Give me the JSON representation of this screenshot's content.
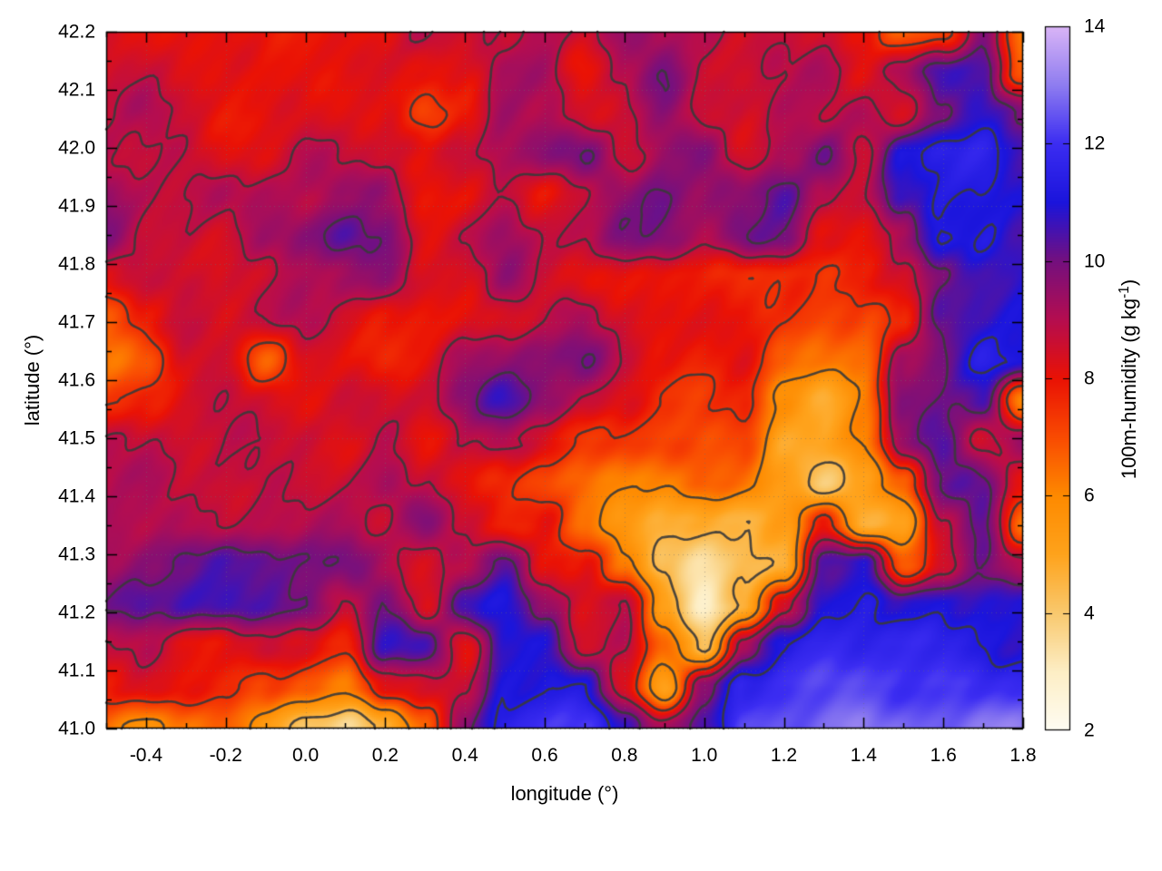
{
  "chart_data": {
    "type": "heatmap",
    "title": "",
    "xlabel": "longitude (°)",
    "ylabel": "latitude (°)",
    "colorbar_label": "100m-humidity (g kg⁻¹)",
    "colorbar_label_parts": {
      "main": "100m-humidity (g kg",
      "sup": "-1",
      "close": ")"
    },
    "xlim": [
      -0.5,
      1.8
    ],
    "ylim": [
      41.0,
      42.2
    ],
    "grid_on": true,
    "legend_position": "none",
    "x_ticks": [
      {
        "v": -0.4,
        "label": "-0.4"
      },
      {
        "v": -0.2,
        "label": "-0.2"
      },
      {
        "v": 0.0,
        "label": "0.0"
      },
      {
        "v": 0.2,
        "label": "0.2"
      },
      {
        "v": 0.4,
        "label": "0.4"
      },
      {
        "v": 0.6,
        "label": "0.6"
      },
      {
        "v": 0.8,
        "label": "0.8"
      },
      {
        "v": 1.0,
        "label": "1.0"
      },
      {
        "v": 1.2,
        "label": "1.2"
      },
      {
        "v": 1.4,
        "label": "1.4"
      },
      {
        "v": 1.6,
        "label": "1.6"
      },
      {
        "v": 1.8,
        "label": "1.8"
      }
    ],
    "x_minor_ticks": [
      -0.5,
      -0.3,
      -0.1,
      0.1,
      0.3,
      0.5,
      0.7,
      0.9,
      1.1,
      1.3,
      1.5,
      1.7
    ],
    "y_ticks": [
      {
        "v": 41.0,
        "label": "41.0"
      },
      {
        "v": 41.1,
        "label": "41.1"
      },
      {
        "v": 41.2,
        "label": "41.2"
      },
      {
        "v": 41.3,
        "label": "41.3"
      },
      {
        "v": 41.4,
        "label": "41.4"
      },
      {
        "v": 41.5,
        "label": "41.5"
      },
      {
        "v": 41.6,
        "label": "41.6"
      },
      {
        "v": 41.7,
        "label": "41.7"
      },
      {
        "v": 41.8,
        "label": "41.8"
      },
      {
        "v": 41.9,
        "label": "41.9"
      },
      {
        "v": 42.0,
        "label": "42.0"
      },
      {
        "v": 42.1,
        "label": "42.1"
      },
      {
        "v": 42.2,
        "label": "42.2"
      }
    ],
    "y_minor_ticks": [
      41.05,
      41.15,
      41.25,
      41.35,
      41.45,
      41.55,
      41.65,
      41.75,
      41.85,
      41.95,
      42.05,
      42.15
    ],
    "colorbar": {
      "min": 2,
      "max": 14,
      "ticks": [
        {
          "v": 2,
          "label": "2"
        },
        {
          "v": 4,
          "label": "4"
        },
        {
          "v": 6,
          "label": "6"
        },
        {
          "v": 8,
          "label": "8"
        },
        {
          "v": 10,
          "label": "10"
        },
        {
          "v": 12,
          "label": "12"
        },
        {
          "v": 14,
          "label": "14"
        }
      ],
      "palette": [
        {
          "v": 2,
          "c": "#fffdf3"
        },
        {
          "v": 3,
          "c": "#fdeec5"
        },
        {
          "v": 4,
          "c": "#f9c96e"
        },
        {
          "v": 5,
          "c": "#ffa31c"
        },
        {
          "v": 6,
          "c": "#fe8a00"
        },
        {
          "v": 7,
          "c": "#f94b02"
        },
        {
          "v": 8,
          "c": "#ea1205"
        },
        {
          "v": 9,
          "c": "#b50d50"
        },
        {
          "v": 10,
          "c": "#75107f"
        },
        {
          "v": 11,
          "c": "#1b15dc"
        },
        {
          "v": 12,
          "c": "#3c2df2"
        },
        {
          "v": 13,
          "c": "#8f7df0"
        },
        {
          "v": 14,
          "c": "#dab5f7"
        }
      ]
    },
    "contour_levels": [
      4.5,
      6.0,
      7.5,
      8.8,
      10.0,
      11.2
    ],
    "contour_color": "#3a3a3a",
    "grid_values": {
      "note": "100m-humidity (g/kg), coarse grid read from map colors; rows top-to-bottom lat 42.2->41.0, cols left-to-right lon -0.5->1.8",
      "rows": 18,
      "cols": 24,
      "lat_top": 42.2,
      "lat_bottom": 41.0,
      "lon_left": -0.5,
      "lon_right": 1.8,
      "values": [
        [
          8.2,
          8.2,
          8.0,
          8.0,
          8.0,
          8.2,
          8.0,
          7.8,
          8.8,
          8.2,
          8.5,
          9.3,
          9.0,
          9.5,
          9.3,
          9.0,
          8.3,
          8.5,
          8.8,
          8.0,
          6.5,
          7.0,
          9.5,
          6.0
        ],
        [
          8.3,
          8.3,
          8.2,
          8.0,
          8.0,
          8.2,
          8.3,
          8.0,
          8.0,
          8.3,
          9.3,
          9.5,
          8.3,
          9.0,
          9.6,
          8.5,
          8.3,
          8.8,
          9.3,
          8.5,
          9.0,
          10.5,
          10.5,
          7.0
        ],
        [
          8.5,
          8.8,
          8.5,
          8.3,
          8.3,
          8.5,
          8.3,
          8.2,
          6.8,
          8.0,
          9.5,
          9.0,
          8.3,
          8.5,
          9.3,
          8.3,
          8.8,
          9.3,
          9.0,
          9.3,
          8.5,
          9.5,
          10.8,
          10.0
        ],
        [
          9.0,
          8.8,
          8.8,
          8.5,
          8.5,
          8.8,
          8.5,
          8.3,
          8.0,
          8.5,
          9.5,
          9.8,
          10.0,
          8.5,
          9.5,
          9.8,
          8.5,
          9.5,
          10.0,
          8.3,
          10.8,
          11.3,
          11.3,
          10.8
        ],
        [
          9.3,
          9.0,
          8.8,
          9.0,
          9.2,
          8.8,
          9.0,
          9.5,
          8.2,
          8.3,
          9.0,
          8.3,
          8.5,
          9.3,
          10.0,
          9.5,
          9.5,
          10.5,
          9.0,
          8.3,
          10.5,
          11.4,
          11.4,
          11.0
        ],
        [
          9.5,
          8.8,
          9.0,
          8.5,
          9.3,
          9.8,
          10.3,
          9.8,
          8.5,
          9.0,
          9.3,
          8.5,
          8.8,
          9.5,
          9.8,
          9.3,
          10.3,
          10.0,
          8.3,
          8.0,
          9.0,
          11.4,
          11.5,
          10.5
        ],
        [
          8.5,
          8.8,
          9.0,
          8.5,
          8.3,
          8.8,
          9.3,
          9.5,
          8.3,
          8.5,
          9.5,
          8.3,
          8.0,
          8.3,
          8.0,
          8.2,
          7.8,
          7.5,
          7.0,
          7.8,
          8.3,
          9.8,
          10.8,
          11.0
        ],
        [
          7.0,
          8.0,
          8.5,
          8.3,
          8.5,
          8.8,
          8.5,
          8.3,
          8.0,
          8.3,
          8.5,
          8.5,
          9.0,
          8.5,
          8.3,
          8.0,
          8.0,
          7.3,
          6.8,
          7.0,
          8.0,
          10.5,
          10.8,
          11.3
        ],
        [
          6.5,
          7.0,
          8.3,
          8.3,
          6.8,
          8.3,
          8.3,
          8.0,
          8.3,
          9.0,
          9.3,
          9.5,
          9.8,
          8.8,
          8.3,
          7.8,
          8.0,
          6.8,
          6.3,
          6.5,
          9.5,
          10.3,
          11.3,
          10.8
        ],
        [
          7.5,
          8.0,
          8.3,
          8.5,
          8.3,
          8.3,
          8.5,
          8.5,
          8.5,
          9.5,
          10.3,
          9.8,
          9.0,
          8.5,
          7.8,
          7.5,
          7.5,
          5.5,
          4.8,
          6.0,
          9.8,
          10.0,
          10.5,
          5.5
        ],
        [
          8.8,
          8.5,
          8.3,
          8.5,
          8.5,
          8.8,
          8.5,
          8.8,
          8.0,
          8.8,
          9.0,
          8.3,
          7.8,
          7.5,
          7.0,
          6.8,
          7.0,
          4.5,
          5.0,
          6.5,
          9.5,
          10.5,
          8.5,
          9.5
        ],
        [
          9.0,
          8.8,
          8.5,
          8.8,
          9.0,
          8.8,
          9.0,
          9.3,
          8.3,
          8.0,
          7.5,
          7.0,
          6.5,
          6.3,
          5.8,
          6.5,
          6.5,
          5.5,
          4.0,
          5.5,
          7.0,
          9.8,
          10.0,
          8.0
        ],
        [
          9.3,
          9.0,
          8.8,
          9.0,
          9.2,
          9.0,
          9.0,
          8.5,
          9.5,
          8.3,
          8.0,
          8.3,
          6.5,
          5.5,
          4.8,
          4.5,
          4.5,
          5.5,
          8.0,
          4.5,
          5.0,
          8.5,
          9.8,
          6.5
        ],
        [
          9.0,
          9.5,
          10.0,
          10.3,
          10.5,
          10.0,
          9.8,
          9.0,
          8.5,
          9.0,
          10.5,
          8.5,
          8.0,
          6.0,
          4.0,
          3.2,
          4.0,
          4.8,
          10.5,
          10.8,
          6.5,
          8.5,
          10.0,
          9.0
        ],
        [
          9.5,
          10.3,
          10.8,
          10.8,
          10.5,
          10.3,
          8.5,
          9.8,
          8.3,
          10.8,
          11.0,
          9.5,
          8.3,
          8.5,
          5.0,
          3.0,
          5.0,
          8.5,
          11.3,
          11.3,
          10.5,
          10.8,
          11.0,
          10.8
        ],
        [
          8.8,
          9.0,
          8.5,
          8.3,
          8.5,
          8.0,
          7.5,
          10.3,
          10.5,
          8.3,
          11.0,
          10.8,
          8.5,
          9.0,
          6.5,
          4.5,
          9.5,
          11.3,
          11.5,
          11.5,
          11.4,
          11.4,
          11.3,
          11.2
        ],
        [
          8.0,
          8.3,
          8.0,
          7.8,
          7.0,
          6.5,
          6.0,
          8.5,
          8.5,
          9.0,
          11.3,
          11.0,
          10.8,
          8.3,
          5.0,
          9.5,
          11.8,
          12.0,
          12.0,
          12.1,
          12.2,
          12.2,
          12.2,
          12.2
        ],
        [
          6.5,
          6.0,
          6.3,
          6.8,
          5.5,
          4.0,
          3.5,
          5.0,
          7.0,
          9.5,
          11.5,
          11.8,
          11.8,
          10.5,
          9.5,
          10.5,
          12.4,
          12.6,
          12.7,
          12.8,
          12.8,
          12.9,
          12.9,
          13.0
        ]
      ]
    }
  }
}
